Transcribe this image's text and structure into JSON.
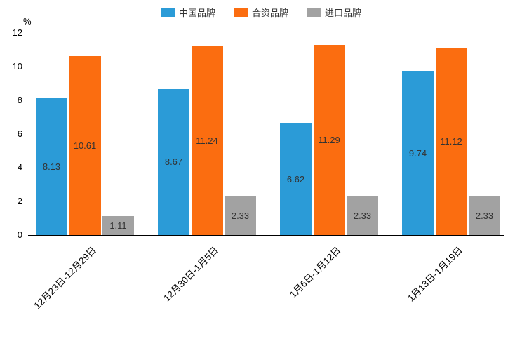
{
  "chart_data": {
    "type": "bar",
    "title": "",
    "unit_label": "%",
    "categories": [
      "12月23日-12月29日",
      "12月30日-1月5日",
      "1月6日-1月12日",
      "1月13日-1月19日"
    ],
    "series": [
      {
        "name": "中国品牌",
        "color": "#2B9BD7",
        "values": [
          8.13,
          8.67,
          6.62,
          9.74
        ]
      },
      {
        "name": "合资品牌",
        "color": "#FB6D10",
        "values": [
          10.61,
          11.24,
          11.29,
          11.12
        ]
      },
      {
        "name": "进口品牌",
        "color": "#A2A2A2",
        "values": [
          1.11,
          2.33,
          2.33,
          2.33
        ]
      }
    ],
    "ylim": [
      0,
      12
    ],
    "ytick_step": 2,
    "yticks": [
      0,
      2,
      4,
      6,
      8,
      10,
      12
    ],
    "legend_position": "top",
    "grid": false,
    "value_labels": "inside-center",
    "xlabel": "",
    "ylabel": "%"
  }
}
